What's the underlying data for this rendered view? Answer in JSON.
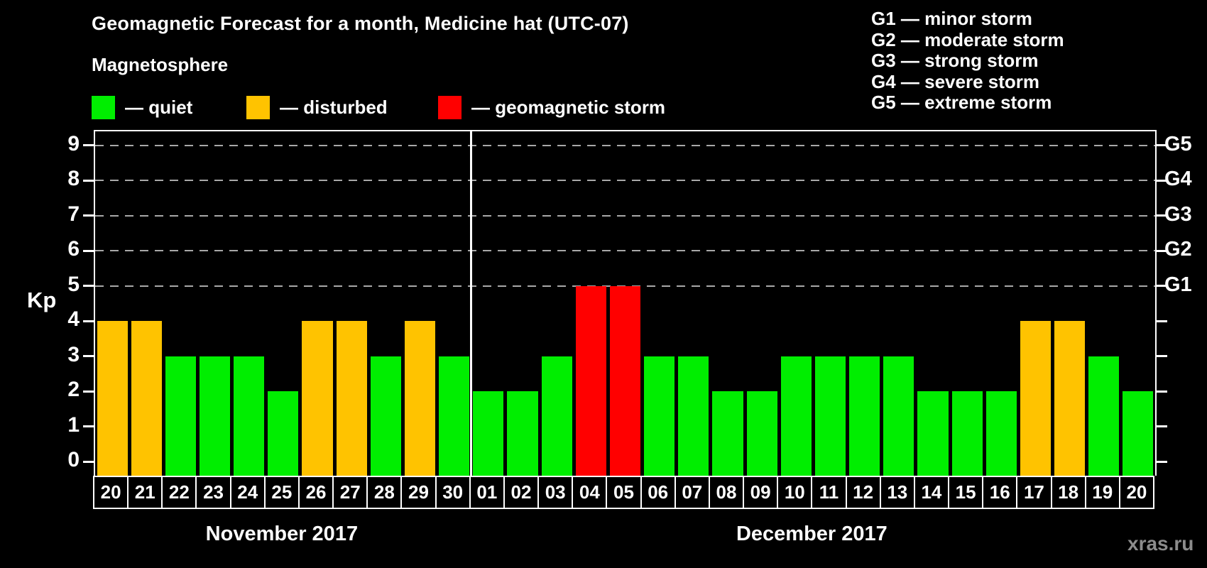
{
  "title": "Geomagnetic Forecast for a month, Medicine hat (UTC-07)",
  "subtitle": "Magnetosphere",
  "legend": {
    "items": [
      {
        "key": "quiet",
        "label": "— quiet",
        "color": "#00ee00"
      },
      {
        "key": "disturbed",
        "label": "— disturbed",
        "color": "#ffc300"
      },
      {
        "key": "storm",
        "label": "— geomagnetic storm",
        "color": "#ff0000"
      }
    ]
  },
  "g_scale_legend": [
    "G1 — minor storm",
    "G2 — moderate storm",
    "G3 — strong storm",
    "G4 — severe storm",
    "G5 — extreme storm"
  ],
  "watermark": "xras.ru",
  "chart_data": {
    "type": "bar",
    "ylabel": "Kp",
    "ylim": [
      -0.4,
      9.4
    ],
    "yticks": [
      0,
      1,
      2,
      3,
      4,
      5,
      6,
      7,
      8,
      9
    ],
    "gridlines_at": [
      5,
      6,
      7,
      8,
      9
    ],
    "grid": true,
    "right_axis_labels": [
      {
        "kp": 5,
        "label": "G1"
      },
      {
        "kp": 6,
        "label": "G2"
      },
      {
        "kp": 7,
        "label": "G3"
      },
      {
        "kp": 8,
        "label": "G4"
      },
      {
        "kp": 9,
        "label": "G5"
      }
    ],
    "months": [
      {
        "label": "November 2017",
        "days": 11
      },
      {
        "label": "December 2017",
        "days": 20
      }
    ],
    "categories": [
      "20",
      "21",
      "22",
      "23",
      "24",
      "25",
      "26",
      "27",
      "28",
      "29",
      "30",
      "01",
      "02",
      "03",
      "04",
      "05",
      "06",
      "07",
      "08",
      "09",
      "10",
      "11",
      "12",
      "13",
      "14",
      "15",
      "16",
      "17",
      "18",
      "19",
      "20"
    ],
    "values": [
      4,
      4,
      3,
      3,
      3,
      2,
      4,
      4,
      3,
      4,
      3,
      2,
      2,
      3,
      5,
      5,
      3,
      3,
      2,
      2,
      3,
      3,
      3,
      3,
      2,
      2,
      2,
      4,
      4,
      3,
      2
    ],
    "status": [
      "disturbed",
      "disturbed",
      "quiet",
      "quiet",
      "quiet",
      "quiet",
      "disturbed",
      "disturbed",
      "quiet",
      "disturbed",
      "quiet",
      "quiet",
      "quiet",
      "quiet",
      "storm",
      "storm",
      "quiet",
      "quiet",
      "quiet",
      "quiet",
      "quiet",
      "quiet",
      "quiet",
      "quiet",
      "quiet",
      "quiet",
      "quiet",
      "disturbed",
      "disturbed",
      "quiet",
      "quiet"
    ],
    "colors": {
      "quiet": "#00ee00",
      "disturbed": "#ffc300",
      "storm": "#ff0000"
    },
    "axis_color": "#ffffff",
    "gridline_color": "#a8a8a8",
    "background": "#000000"
  }
}
